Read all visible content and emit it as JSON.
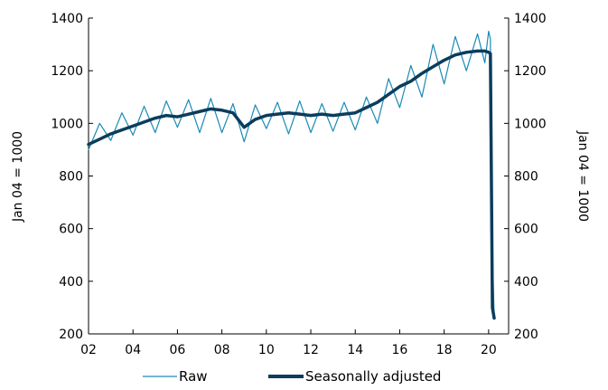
{
  "chart_data": {
    "type": "line",
    "title": "",
    "xlabel": "",
    "ylabel_left": "Jan 04 = 1000",
    "ylabel_right": "Jan 04 = 1000",
    "xlim": [
      2002,
      2020.9
    ],
    "ylim": [
      200,
      1400
    ],
    "x_ticks": [
      2002,
      2004,
      2006,
      2008,
      2010,
      2012,
      2014,
      2016,
      2018,
      2020
    ],
    "x_tick_labels": [
      "02",
      "04",
      "06",
      "08",
      "10",
      "12",
      "14",
      "16",
      "18",
      "20"
    ],
    "y_ticks": [
      200,
      400,
      600,
      800,
      1000,
      1200,
      1400
    ],
    "y_tick_labels": [
      "200",
      "400",
      "600",
      "800",
      "1000",
      "1200",
      "1400"
    ],
    "grid": false,
    "legend_position": "bottom",
    "colors": {
      "raw": "#1a8ab8",
      "seasonally_adjusted": "#0b3d5c"
    },
    "series": [
      {
        "name": "Raw",
        "key": "raw",
        "x": [
          2002.0,
          2002.5,
          2003.0,
          2003.5,
          2004.0,
          2004.5,
          2005.0,
          2005.5,
          2006.0,
          2006.5,
          2007.0,
          2007.5,
          2008.0,
          2008.5,
          2009.0,
          2009.5,
          2010.0,
          2010.5,
          2011.0,
          2011.5,
          2012.0,
          2012.5,
          2013.0,
          2013.5,
          2014.0,
          2014.5,
          2015.0,
          2015.5,
          2016.0,
          2016.5,
          2017.0,
          2017.5,
          2018.0,
          2018.5,
          2019.0,
          2019.5,
          2019.83,
          2020.0,
          2020.08,
          2020.17,
          2020.25
        ],
        "y": [
          900,
          1000,
          935,
          1040,
          955,
          1065,
          965,
          1085,
          985,
          1090,
          965,
          1095,
          965,
          1075,
          930,
          1070,
          980,
          1080,
          960,
          1085,
          965,
          1075,
          970,
          1080,
          975,
          1100,
          1000,
          1170,
          1060,
          1220,
          1100,
          1300,
          1150,
          1330,
          1200,
          1340,
          1230,
          1350,
          1320,
          500,
          270
        ]
      },
      {
        "name": "Seasonally adjusted",
        "key": "seasonally_adjusted",
        "x": [
          2002.0,
          2002.5,
          2003.0,
          2003.5,
          2004.0,
          2004.5,
          2005.0,
          2005.5,
          2006.0,
          2006.5,
          2007.0,
          2007.5,
          2008.0,
          2008.5,
          2009.0,
          2009.5,
          2010.0,
          2010.5,
          2011.0,
          2011.5,
          2012.0,
          2012.5,
          2013.0,
          2013.5,
          2014.0,
          2014.5,
          2015.0,
          2015.5,
          2016.0,
          2016.5,
          2017.0,
          2017.5,
          2018.0,
          2018.5,
          2019.0,
          2019.5,
          2019.83,
          2020.0,
          2020.08,
          2020.17,
          2020.25
        ],
        "y": [
          920,
          940,
          960,
          975,
          990,
          1005,
          1020,
          1030,
          1025,
          1035,
          1045,
          1055,
          1050,
          1040,
          985,
          1015,
          1030,
          1035,
          1040,
          1035,
          1030,
          1035,
          1030,
          1035,
          1040,
          1060,
          1080,
          1110,
          1140,
          1160,
          1190,
          1215,
          1240,
          1260,
          1270,
          1275,
          1275,
          1270,
          1265,
          300,
          260
        ]
      }
    ]
  }
}
